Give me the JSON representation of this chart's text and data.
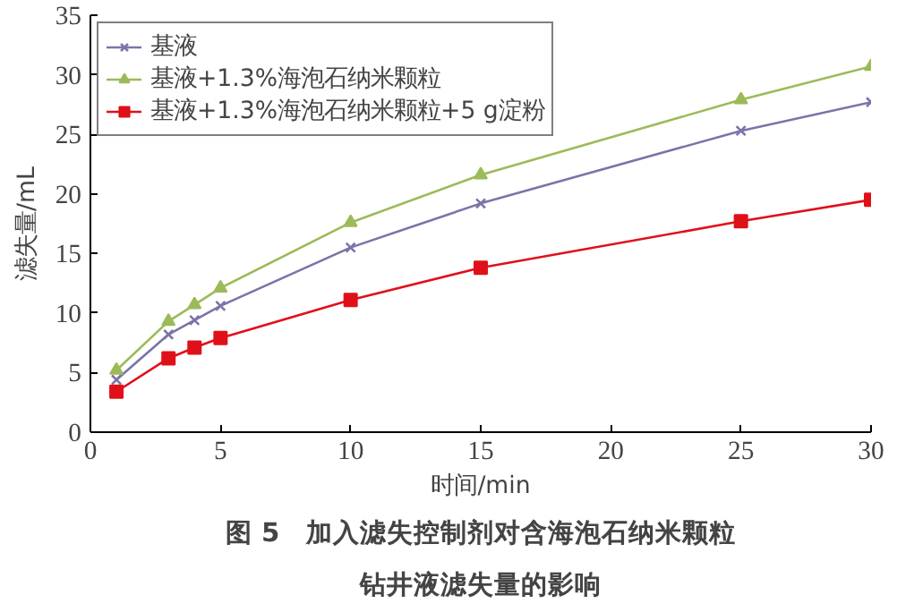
{
  "chart_data": {
    "type": "line",
    "title": "图 5　加入滤失控制剂对含海泡石纳米颗粒钻井液滤失量的影响",
    "xlabel": "时间/min",
    "ylabel": "滤失量/mL",
    "x": [
      1,
      3,
      4,
      5,
      10,
      15,
      25,
      30
    ],
    "series": [
      {
        "name": "基液",
        "color": "#7b74a8",
        "marker": "cross",
        "values": [
          4.4,
          8.2,
          9.4,
          10.6,
          15.5,
          19.2,
          25.3,
          27.7
        ]
      },
      {
        "name": "基液+1.3%海泡石纳米颗粒",
        "color": "#9bbb59",
        "marker": "triangle",
        "values": [
          5.2,
          9.3,
          10.7,
          12.1,
          17.6,
          21.6,
          27.9,
          30.7
        ]
      },
      {
        "name": "基液+1.3%海泡石纳米颗粒+5 g淀粉",
        "color": "#e0101a",
        "marker": "square",
        "values": [
          3.4,
          6.2,
          7.1,
          7.9,
          11.1,
          13.8,
          17.7,
          19.5
        ]
      }
    ],
    "xlim": [
      0,
      30
    ],
    "ylim": [
      0,
      35
    ],
    "xticks": [
      0,
      5,
      10,
      15,
      20,
      25,
      30
    ],
    "yticks": [
      0,
      5,
      10,
      15,
      20,
      25,
      30,
      35
    ],
    "grid": false,
    "legend": "top left"
  }
}
